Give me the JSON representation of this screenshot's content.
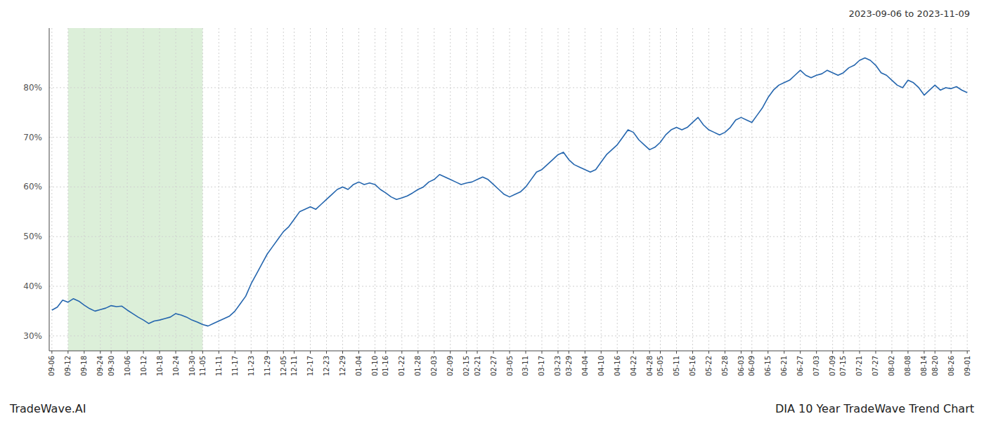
{
  "chart_data": {
    "type": "line",
    "title": "DIA 10 Year TradeWave Trend Chart",
    "subtitle": "2023-09-06 to 2023-11-09",
    "annotations": [
      "TradeWave.AI"
    ],
    "color": "#2566AE",
    "grid": true,
    "span": {
      "start": "09-12",
      "end": "11-05",
      "color": "#d6ecd2"
    },
    "ylim": [
      27,
      92
    ],
    "yticks": [
      {
        "value": 30,
        "label": "30%"
      },
      {
        "value": 40,
        "label": "40%"
      },
      {
        "value": 50,
        "label": "50%"
      },
      {
        "value": 60,
        "label": "60%"
      },
      {
        "value": 70,
        "label": "70%"
      },
      {
        "value": 80,
        "label": "80%"
      }
    ],
    "categories": [
      "09-06",
      null,
      null,
      "09-12",
      null,
      null,
      "09-18",
      null,
      null,
      "09-24",
      null,
      "09-30",
      null,
      null,
      "10-06",
      null,
      null,
      "10-12",
      null,
      null,
      "10-18",
      null,
      null,
      "10-24",
      null,
      null,
      "10-30",
      null,
      "11-05",
      null,
      null,
      "11-11",
      null,
      null,
      "11-17",
      null,
      null,
      "11-23",
      null,
      null,
      "11-29",
      null,
      null,
      "12-05",
      null,
      "12-11",
      null,
      null,
      "12-17",
      null,
      null,
      "12-23",
      null,
      null,
      "12-29",
      null,
      null,
      "01-04",
      null,
      null,
      "01-10",
      null,
      "01-16",
      null,
      null,
      "01-22",
      null,
      null,
      "01-28",
      null,
      null,
      "02-03",
      null,
      null,
      "02-09",
      null,
      null,
      "02-15",
      null,
      "02-21",
      null,
      null,
      "02-27",
      null,
      null,
      "03-05",
      null,
      null,
      "03-11",
      null,
      null,
      "03-17",
      null,
      null,
      "03-23",
      null,
      "03-29",
      null,
      null,
      "04-04",
      null,
      null,
      "04-10",
      null,
      null,
      "04-16",
      null,
      null,
      "04-22",
      null,
      null,
      "04-28",
      null,
      "05-05",
      null,
      null,
      "05-11",
      null,
      null,
      "05-16",
      null,
      null,
      "05-22",
      null,
      null,
      "05-28",
      null,
      null,
      "06-03",
      null,
      "06-09",
      null,
      null,
      "06-15",
      null,
      null,
      "06-21",
      null,
      null,
      "06-27",
      null,
      null,
      "07-03",
      null,
      null,
      "07-09",
      null,
      "07-15",
      null,
      null,
      "07-21",
      null,
      null,
      "07-27",
      null,
      null,
      "08-02",
      null,
      null,
      "08-08",
      null,
      null,
      "08-14",
      null,
      "08-20",
      null,
      null,
      "08-26",
      null,
      null,
      "09-01"
    ],
    "values": [
      35.2,
      35.8,
      37.2,
      36.8,
      37.5,
      37.0,
      36.2,
      35.5,
      35.0,
      35.3,
      35.6,
      36.1,
      35.9,
      36.0,
      35.2,
      34.5,
      33.8,
      33.2,
      32.5,
      33.0,
      33.2,
      33.5,
      33.8,
      34.5,
      34.2,
      33.8,
      33.2,
      32.8,
      32.3,
      32.0,
      32.5,
      33.0,
      33.5,
      34.0,
      35.0,
      36.5,
      38.0,
      40.5,
      42.5,
      44.5,
      46.5,
      48.0,
      49.5,
      51.0,
      52.0,
      53.5,
      55.0,
      55.5,
      56.0,
      55.5,
      56.5,
      57.5,
      58.5,
      59.5,
      60.0,
      59.5,
      60.5,
      61.0,
      60.5,
      60.8,
      60.5,
      59.5,
      58.8,
      58.0,
      57.5,
      57.8,
      58.2,
      58.8,
      59.5,
      60.0,
      61.0,
      61.5,
      62.5,
      62.0,
      61.5,
      61.0,
      60.5,
      60.8,
      61.0,
      61.5,
      62.0,
      61.5,
      60.5,
      59.5,
      58.5,
      58.0,
      58.5,
      59.0,
      60.0,
      61.5,
      63.0,
      63.5,
      64.5,
      65.5,
      66.5,
      67.0,
      65.5,
      64.5,
      64.0,
      63.5,
      63.0,
      63.5,
      65.0,
      66.5,
      67.5,
      68.5,
      70.0,
      71.5,
      71.0,
      69.5,
      68.5,
      67.5,
      68.0,
      69.0,
      70.5,
      71.5,
      72.0,
      71.5,
      72.0,
      73.0,
      74.0,
      72.5,
      71.5,
      71.0,
      70.5,
      71.0,
      72.0,
      73.5,
      74.0,
      73.5,
      73.0,
      74.5,
      76.0,
      78.0,
      79.5,
      80.5,
      81.0,
      81.5,
      82.5,
      83.5,
      82.5,
      82.0,
      82.5,
      82.8,
      83.5,
      83.0,
      82.5,
      83.0,
      84.0,
      84.5,
      85.5,
      86.0,
      85.5,
      84.5,
      83.0,
      82.5,
      81.5,
      80.5,
      80.0,
      81.5,
      81.0,
      80.0,
      78.5,
      79.5,
      80.5,
      79.5,
      80.0,
      79.8,
      80.2,
      79.5,
      79.0
    ]
  }
}
